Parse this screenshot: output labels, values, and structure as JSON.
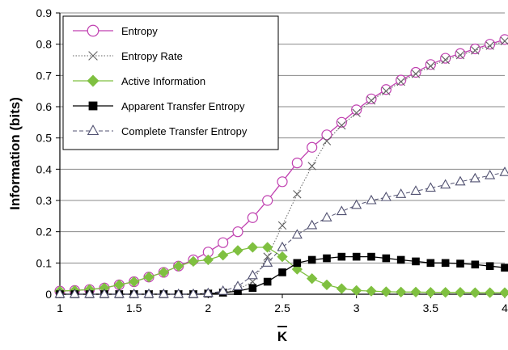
{
  "chart_data": {
    "type": "line",
    "xlabel": "K",
    "xlabel_overbar": true,
    "ylabel": "Information (bits)",
    "xlim": [
      1,
      4
    ],
    "ylim": [
      0,
      0.9
    ],
    "xticks": [
      "1",
      "1.5",
      "2",
      "2.5",
      "3",
      "3.5",
      "4"
    ],
    "yticks": [
      "0",
      "0.1",
      "0.2",
      "0.3",
      "0.4",
      "0.5",
      "0.6",
      "0.7",
      "0.8",
      "0.9"
    ],
    "grid": "horizontal",
    "legend_position": "top-left",
    "series": [
      {
        "name": "Entropy",
        "color": "#c040b0",
        "marker": "open-circle",
        "line": "solid",
        "x": [
          1,
          1.1,
          1.2,
          1.3,
          1.4,
          1.5,
          1.6,
          1.7,
          1.8,
          1.9,
          2,
          2.1,
          2.2,
          2.3,
          2.4,
          2.5,
          2.6,
          2.7,
          2.8,
          2.9,
          3,
          3.1,
          3.2,
          3.3,
          3.4,
          3.5,
          3.6,
          3.7,
          3.8,
          3.9,
          4
        ],
        "y": [
          0.01,
          0.012,
          0.015,
          0.02,
          0.03,
          0.04,
          0.055,
          0.07,
          0.09,
          0.11,
          0.135,
          0.165,
          0.2,
          0.245,
          0.3,
          0.36,
          0.42,
          0.47,
          0.51,
          0.55,
          0.59,
          0.625,
          0.655,
          0.685,
          0.71,
          0.735,
          0.755,
          0.77,
          0.785,
          0.8,
          0.815
        ]
      },
      {
        "name": "Entropy Rate",
        "color": "#606060",
        "marker": "x",
        "line": "dotted",
        "x": [
          1,
          1.1,
          1.2,
          1.3,
          1.4,
          1.5,
          1.6,
          1.7,
          1.8,
          1.9,
          2,
          2.1,
          2.2,
          2.3,
          2.4,
          2.5,
          2.6,
          2.7,
          2.8,
          2.9,
          3,
          3.1,
          3.2,
          3.3,
          3.4,
          3.5,
          3.6,
          3.7,
          3.8,
          3.9,
          4
        ],
        "y": [
          0,
          0,
          0,
          0,
          0,
          0,
          0,
          0,
          0,
          0,
          0.002,
          0.005,
          0.015,
          0.04,
          0.12,
          0.22,
          0.32,
          0.41,
          0.49,
          0.54,
          0.58,
          0.62,
          0.65,
          0.68,
          0.705,
          0.73,
          0.75,
          0.765,
          0.78,
          0.795,
          0.81
        ]
      },
      {
        "name": "Active Information",
        "color": "#7fc040",
        "marker": "filled-diamond",
        "line": "solid",
        "x": [
          1,
          1.1,
          1.2,
          1.3,
          1.4,
          1.5,
          1.6,
          1.7,
          1.8,
          1.9,
          2,
          2.1,
          2.2,
          2.3,
          2.4,
          2.5,
          2.6,
          2.7,
          2.8,
          2.9,
          3,
          3.1,
          3.2,
          3.3,
          3.4,
          3.5,
          3.6,
          3.7,
          3.8,
          3.9,
          4
        ],
        "y": [
          0.01,
          0.012,
          0.015,
          0.02,
          0.03,
          0.04,
          0.055,
          0.07,
          0.09,
          0.105,
          0.11,
          0.125,
          0.14,
          0.15,
          0.15,
          0.12,
          0.08,
          0.05,
          0.03,
          0.018,
          0.012,
          0.01,
          0.008,
          0.007,
          0.007,
          0.006,
          0.006,
          0.006,
          0.005,
          0.005,
          0.005
        ]
      },
      {
        "name": "Apparent Transfer Entropy",
        "color": "#000000",
        "marker": "filled-square",
        "line": "solid",
        "x": [
          1,
          1.1,
          1.2,
          1.3,
          1.4,
          1.5,
          1.6,
          1.7,
          1.8,
          1.9,
          2,
          2.1,
          2.2,
          2.3,
          2.4,
          2.5,
          2.6,
          2.7,
          2.8,
          2.9,
          3,
          3.1,
          3.2,
          3.3,
          3.4,
          3.5,
          3.6,
          3.7,
          3.8,
          3.9,
          4
        ],
        "y": [
          0,
          0,
          0,
          0,
          0,
          0,
          0,
          0,
          0,
          0,
          0.002,
          0.005,
          0.01,
          0.02,
          0.04,
          0.07,
          0.1,
          0.11,
          0.115,
          0.12,
          0.12,
          0.12,
          0.115,
          0.11,
          0.105,
          0.1,
          0.1,
          0.098,
          0.095,
          0.09,
          0.085
        ]
      },
      {
        "name": "Complete Transfer Entropy",
        "color": "#505070",
        "marker": "open-triangle",
        "line": "dashed",
        "x": [
          1,
          1.1,
          1.2,
          1.3,
          1.4,
          1.5,
          1.6,
          1.7,
          1.8,
          1.9,
          2,
          2.1,
          2.2,
          2.3,
          2.4,
          2.5,
          2.6,
          2.7,
          2.8,
          2.9,
          3,
          3.1,
          3.2,
          3.3,
          3.4,
          3.5,
          3.6,
          3.7,
          3.8,
          3.9,
          4
        ],
        "y": [
          0,
          0,
          0,
          0,
          0,
          0,
          0,
          0,
          0,
          0,
          0.003,
          0.01,
          0.025,
          0.06,
          0.1,
          0.15,
          0.19,
          0.22,
          0.245,
          0.265,
          0.285,
          0.3,
          0.31,
          0.32,
          0.33,
          0.34,
          0.35,
          0.36,
          0.37,
          0.38,
          0.39
        ]
      }
    ]
  }
}
